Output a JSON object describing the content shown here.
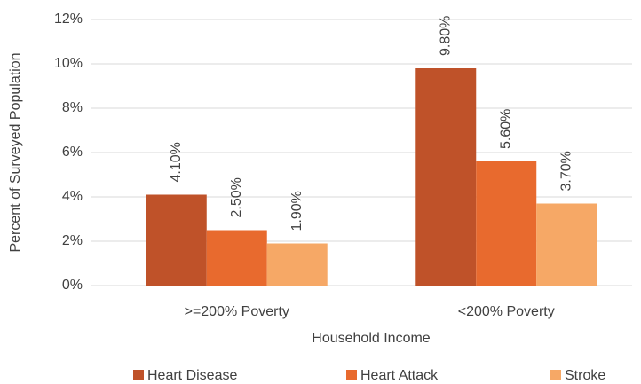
{
  "chart_data": {
    "type": "bar",
    "categories": [
      ">=200% Poverty",
      "<200% Poverty"
    ],
    "series": [
      {
        "name": "Heart Disease",
        "color": "#bf5229",
        "values": [
          4.1,
          9.8
        ],
        "value_labels": [
          "4.10%",
          "9.80%"
        ]
      },
      {
        "name": "Heart Attack",
        "color": "#e86a2e",
        "values": [
          2.5,
          5.6
        ],
        "value_labels": [
          "2.50%",
          "5.60%"
        ]
      },
      {
        "name": "Stroke",
        "color": "#f6a866",
        "values": [
          1.9,
          3.7
        ],
        "value_labels": [
          "1.90%",
          "3.70%"
        ]
      }
    ],
    "ylim": [
      0,
      12
    ],
    "yticks": [
      {
        "value": 0,
        "label": "0%"
      },
      {
        "value": 2,
        "label": "2%"
      },
      {
        "value": 4,
        "label": "4%"
      },
      {
        "value": 6,
        "label": "6%"
      },
      {
        "value": 8,
        "label": "8%"
      },
      {
        "value": 10,
        "label": "10%"
      },
      {
        "value": 12,
        "label": "12%"
      }
    ],
    "ylabel": "Percent of Surveyed Population",
    "xlabel": "Household Income",
    "grid": true,
    "legend": "bottom"
  }
}
